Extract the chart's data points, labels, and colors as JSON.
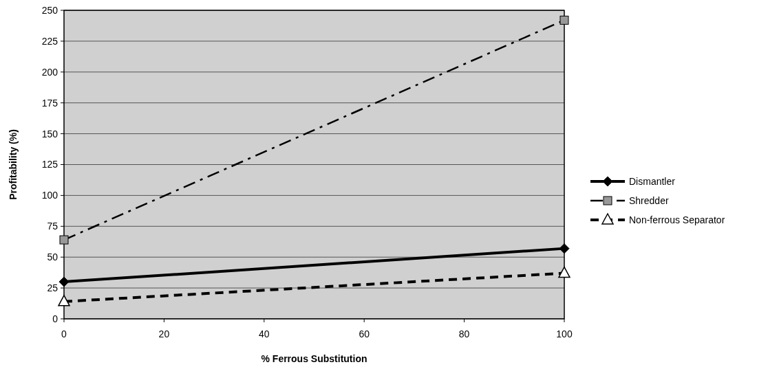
{
  "chart_data": {
    "type": "line",
    "xlabel": "% Ferrous Substitution",
    "ylabel": "Profitability (%)",
    "x": [
      0,
      100
    ],
    "xlim": [
      0,
      100
    ],
    "xticks": [
      0,
      20,
      40,
      60,
      80,
      100
    ],
    "ylim": [
      0,
      250
    ],
    "yticks": [
      0,
      25,
      50,
      75,
      100,
      125,
      150,
      175,
      200,
      225,
      250
    ],
    "grid": "y",
    "legend": "right",
    "series": [
      {
        "name": "Dismantler",
        "color": "#000000",
        "values": [
          30,
          57
        ],
        "marker": "diamond",
        "line_style": "solid"
      },
      {
        "name": "Shredder",
        "color": "#000000",
        "values": [
          64,
          242
        ],
        "marker": "square",
        "line_style": "dashdot"
      },
      {
        "name": "Non-ferrous Separator",
        "color": "#000000",
        "values": [
          14,
          37
        ],
        "marker": "triangle",
        "line_style": "dashed"
      }
    ]
  }
}
